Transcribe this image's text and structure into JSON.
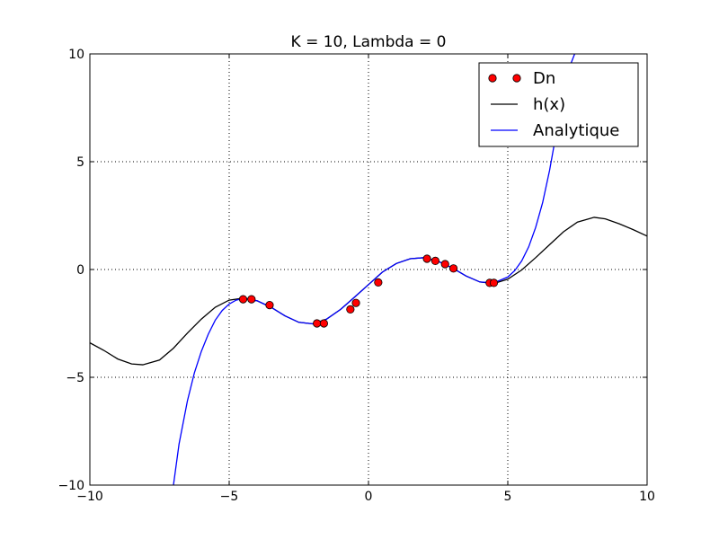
{
  "chart_data": {
    "type": "line",
    "title": "K = 10, Lambda = 0",
    "xlabel": "",
    "ylabel": "",
    "xlim": [
      -10,
      10
    ],
    "ylim": [
      -10,
      10
    ],
    "xticks": [
      -10,
      -5,
      0,
      5,
      10
    ],
    "yticks": [
      -10,
      -5,
      0,
      5,
      10
    ],
    "xtick_labels": [
      "−10",
      "−5",
      "0",
      "5",
      "10"
    ],
    "ytick_labels": [
      "−10",
      "−5",
      "0",
      "5",
      "10"
    ],
    "grid": true,
    "legend_position": "top-right",
    "series": [
      {
        "name": "Dn",
        "style": "markers",
        "color": "#ff0000",
        "x": [
          -4.5,
          -4.2,
          -3.55,
          -1.85,
          -1.6,
          -0.65,
          -0.45,
          0.35,
          2.1,
          2.4,
          2.75,
          3.05,
          4.35,
          4.5
        ],
        "y": [
          -1.38,
          -1.38,
          -1.65,
          -2.5,
          -2.5,
          -1.85,
          -1.55,
          -0.6,
          0.5,
          0.4,
          0.25,
          0.05,
          -0.62,
          -0.62
        ]
      },
      {
        "name": "h(x)",
        "style": "line",
        "color": "#000000",
        "x": [
          -10,
          -9.5,
          -9,
          -8.5,
          -8.1,
          -7.5,
          -7,
          -6.5,
          -6,
          -5.5,
          -5,
          -4.5,
          -4,
          -3.5,
          -3,
          -2.5,
          -2,
          -1.5,
          -1,
          -0.5,
          0,
          0.5,
          1,
          1.5,
          2,
          2.5,
          3,
          3.5,
          4,
          4.5,
          5,
          5.5,
          6,
          6.5,
          7,
          7.5,
          8.1,
          8.5,
          9,
          9.5,
          10
        ],
        "y": [
          -3.4,
          -3.75,
          -4.15,
          -4.38,
          -4.42,
          -4.2,
          -3.65,
          -2.95,
          -2.3,
          -1.75,
          -1.42,
          -1.33,
          -1.45,
          -1.75,
          -2.15,
          -2.45,
          -2.52,
          -2.3,
          -1.85,
          -1.28,
          -0.7,
          -0.12,
          0.28,
          0.5,
          0.55,
          0.38,
          0.08,
          -0.3,
          -0.58,
          -0.65,
          -0.45,
          -0.02,
          0.55,
          1.15,
          1.75,
          2.2,
          2.42,
          2.35,
          2.12,
          1.85,
          1.55
        ]
      },
      {
        "name": "Analytique",
        "style": "line",
        "color": "#0000ff",
        "x": [
          -7.0,
          -6.8,
          -6.5,
          -6.25,
          -6.0,
          -5.75,
          -5.5,
          -5.25,
          -5.0,
          -4.75,
          -4.5,
          -4.0,
          -3.5,
          -3,
          -2.5,
          -2,
          -1.5,
          -1,
          -0.5,
          0,
          0.5,
          1,
          1.5,
          2,
          2.5,
          3,
          3.5,
          4,
          4.5,
          5,
          5.25,
          5.5,
          5.75,
          6.0,
          6.25,
          6.5,
          6.75,
          7.0,
          7.25,
          7.4
        ],
        "y": [
          -10,
          -8.1,
          -6.1,
          -4.8,
          -3.8,
          -3.0,
          -2.35,
          -1.9,
          -1.6,
          -1.42,
          -1.35,
          -1.45,
          -1.75,
          -2.15,
          -2.45,
          -2.52,
          -2.3,
          -1.85,
          -1.28,
          -0.7,
          -0.12,
          0.28,
          0.5,
          0.55,
          0.38,
          0.08,
          -0.3,
          -0.58,
          -0.62,
          -0.35,
          -0.05,
          0.4,
          1.05,
          1.95,
          3.1,
          4.6,
          6.4,
          8.3,
          9.5,
          10
        ]
      }
    ]
  }
}
